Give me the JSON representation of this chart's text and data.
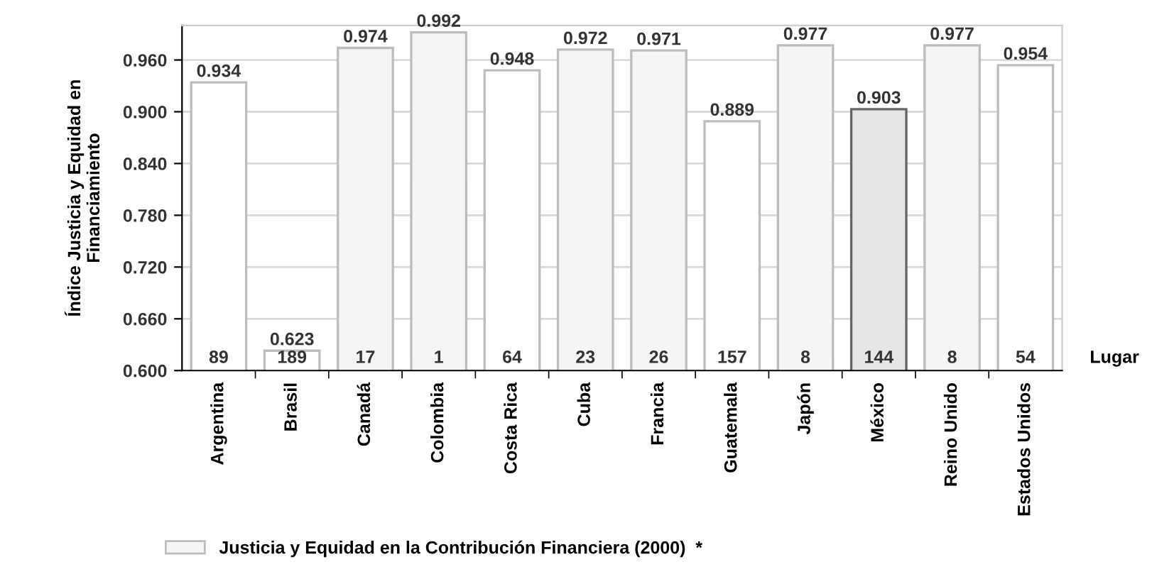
{
  "chart_data": {
    "type": "bar",
    "ylabel": "Índice Justicia y Equidad en\nFinanciamiento",
    "categories": [
      "Argentina",
      "Brasil",
      "Canadá",
      "Colombia",
      "Costa Rica",
      "Cuba",
      "Francia",
      "Guatemala",
      "Japón",
      "México",
      "Reino Unido",
      "Estados Unidos"
    ],
    "series": [
      {
        "name": "Justicia y Equidad en la Contribución Financiera (2000)  *",
        "color": "#f5f5f5",
        "colors": [
          "#ffffff",
          "#ffffff",
          "#f5f5f5",
          "#f5f5f5",
          "#ffffff",
          "#f5f5f5",
          "#f5f5f5",
          "#ffffff",
          "#f5f5f5",
          "#e6e6e6",
          "#f5f5f5",
          "#ffffff"
        ],
        "values": [
          0.934,
          0.623,
          0.974,
          0.992,
          0.948,
          0.972,
          0.971,
          0.889,
          0.977,
          0.903,
          0.977,
          0.954
        ]
      }
    ],
    "data_labels": true,
    "ylim": [
      0.6,
      1.0
    ],
    "yticks": [
      {
        "value": 0.6,
        "label": "0.600"
      },
      {
        "value": 0.66,
        "label": "0.660"
      },
      {
        "value": 0.72,
        "label": "0.720"
      },
      {
        "value": 0.78,
        "label": "0.780"
      },
      {
        "value": 0.84,
        "label": "0.840"
      },
      {
        "value": 0.9,
        "label": "0.900"
      },
      {
        "value": 0.96,
        "label": "0.960"
      }
    ],
    "grid": "y",
    "legend": "bottom",
    "annotations": [
      "89",
      "189",
      "17",
      "1",
      "64",
      "23",
      "26",
      "157",
      "8",
      "144",
      "8",
      "54",
      "Lugar"
    ]
  }
}
